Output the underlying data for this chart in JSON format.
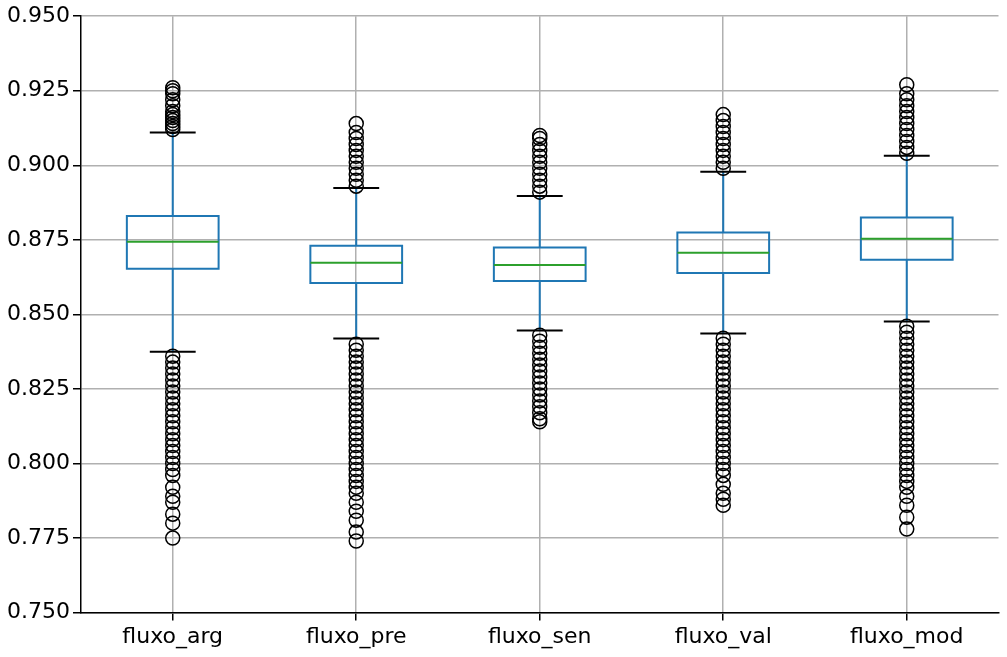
{
  "chart_data": {
    "type": "box",
    "categories": [
      "fluxo_arg",
      "fluxo_pre",
      "fluxo_sen",
      "fluxo_val",
      "fluxo_mod"
    ],
    "ylim": [
      0.75,
      0.95
    ],
    "yticks": [
      {
        "value": 0.75,
        "label": "0.750"
      },
      {
        "value": 0.775,
        "label": "0.775"
      },
      {
        "value": 0.8,
        "label": "0.800"
      },
      {
        "value": 0.825,
        "label": "0.825"
      },
      {
        "value": 0.85,
        "label": "0.850"
      },
      {
        "value": 0.875,
        "label": "0.875"
      },
      {
        "value": 0.9,
        "label": "0.900"
      },
      {
        "value": 0.925,
        "label": "0.925"
      },
      {
        "value": 0.95,
        "label": "0.950"
      }
    ],
    "grid": true,
    "marker": "circle",
    "legend": false,
    "series": [
      {
        "color": "#1f77b4",
        "boxes": [
          {
            "low": 0.8375,
            "q1": 0.8653,
            "median": 0.8744,
            "q3": 0.883,
            "high": 0.911,
            "outliers": [
              0.912,
              0.913,
              0.914,
              0.915,
              0.916,
              0.917,
              0.918,
              0.92,
              0.922,
              0.924,
              0.925,
              0.926,
              0.836,
              0.834,
              0.832,
              0.83,
              0.828,
              0.826,
              0.824,
              0.822,
              0.82,
              0.818,
              0.816,
              0.814,
              0.812,
              0.81,
              0.808,
              0.806,
              0.804,
              0.802,
              0.8,
              0.798,
              0.796,
              0.792,
              0.789,
              0.787,
              0.783,
              0.78,
              0.775
            ]
          },
          {
            "low": 0.8419,
            "q1": 0.8605,
            "median": 0.8673,
            "q3": 0.873,
            "high": 0.8924,
            "outliers": [
              0.893,
              0.895,
              0.897,
              0.899,
              0.901,
              0.903,
              0.905,
              0.907,
              0.909,
              0.911,
              0.914,
              0.84,
              0.838,
              0.836,
              0.834,
              0.832,
              0.83,
              0.828,
              0.826,
              0.824,
              0.822,
              0.82,
              0.818,
              0.816,
              0.814,
              0.812,
              0.81,
              0.808,
              0.806,
              0.804,
              0.802,
              0.8,
              0.798,
              0.796,
              0.794,
              0.792,
              0.79,
              0.787,
              0.784,
              0.781,
              0.777,
              0.774
            ]
          },
          {
            "low": 0.8446,
            "q1": 0.8612,
            "median": 0.8666,
            "q3": 0.8724,
            "high": 0.8897,
            "outliers": [
              0.891,
              0.893,
              0.895,
              0.897,
              0.899,
              0.901,
              0.903,
              0.905,
              0.907,
              0.909,
              0.91,
              0.843,
              0.841,
              0.839,
              0.837,
              0.835,
              0.833,
              0.831,
              0.829,
              0.827,
              0.825,
              0.823,
              0.821,
              0.819,
              0.817,
              0.815,
              0.814
            ]
          },
          {
            "low": 0.8436,
            "q1": 0.8639,
            "median": 0.8707,
            "q3": 0.8775,
            "high": 0.8978,
            "outliers": [
              0.899,
              0.901,
              0.903,
              0.905,
              0.907,
              0.909,
              0.911,
              0.913,
              0.915,
              0.917,
              0.842,
              0.84,
              0.838,
              0.836,
              0.834,
              0.832,
              0.83,
              0.828,
              0.826,
              0.824,
              0.822,
              0.82,
              0.818,
              0.816,
              0.814,
              0.812,
              0.81,
              0.808,
              0.806,
              0.804,
              0.802,
              0.8,
              0.798,
              0.796,
              0.793,
              0.79,
              0.788,
              0.786
            ]
          },
          {
            "low": 0.8476,
            "q1": 0.8683,
            "median": 0.8754,
            "q3": 0.8825,
            "high": 0.9032,
            "outliers": [
              0.904,
              0.906,
              0.908,
              0.91,
              0.912,
              0.914,
              0.916,
              0.918,
              0.92,
              0.922,
              0.924,
              0.927,
              0.846,
              0.844,
              0.842,
              0.84,
              0.838,
              0.836,
              0.834,
              0.832,
              0.83,
              0.828,
              0.826,
              0.824,
              0.822,
              0.82,
              0.818,
              0.816,
              0.814,
              0.812,
              0.81,
              0.808,
              0.806,
              0.804,
              0.802,
              0.8,
              0.798,
              0.796,
              0.794,
              0.792,
              0.789,
              0.786,
              0.782,
              0.778
            ]
          }
        ]
      }
    ]
  }
}
